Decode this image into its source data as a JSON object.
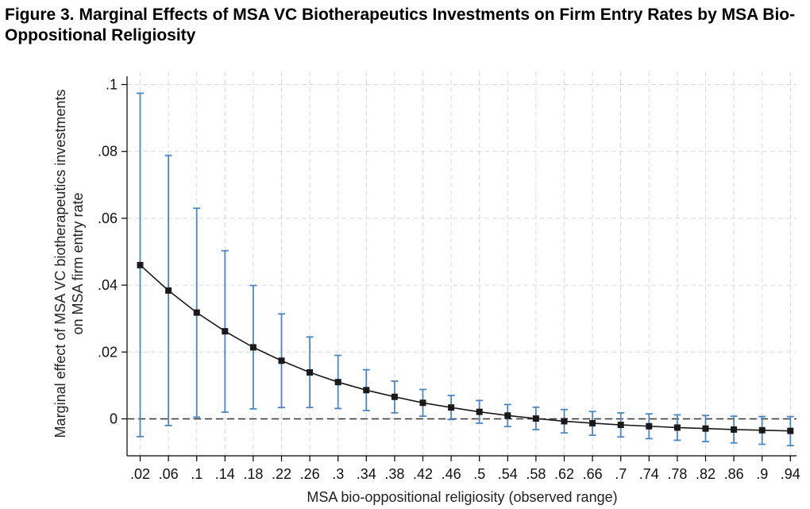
{
  "figure": {
    "number": "Figure 3.",
    "caption": "Marginal Effects of MSA VC Biotherapeutics Investments on Firm Entry Rates by MSA Bio-Oppositional Religiosity"
  },
  "chart_data": {
    "type": "line",
    "title": "Marginal Effects of MSA VC Biotherapeutics Investments on Firm Entry Rates by MSA Bio-Oppositional Religiosity",
    "xlabel": "MSA bio-oppositional religiosity (observed range)",
    "ylabel_lines": [
      "Marginal effect of MSA VC biotherapeutics investments",
      "on MSA firm entry rate"
    ],
    "x": [
      0.02,
      0.06,
      0.1,
      0.14,
      0.18,
      0.22,
      0.26,
      0.3,
      0.34,
      0.38,
      0.42,
      0.46,
      0.5,
      0.54,
      0.58,
      0.62,
      0.66,
      0.7,
      0.74,
      0.78,
      0.82,
      0.86,
      0.9,
      0.94
    ],
    "x_tick_labels": [
      ".02",
      ".06",
      ".1",
      ".14",
      ".18",
      ".22",
      ".26",
      ".3",
      ".34",
      ".38",
      ".42",
      ".46",
      ".5",
      ".54",
      ".58",
      ".62",
      ".66",
      ".7",
      ".74",
      ".78",
      ".82",
      ".86",
      ".9",
      ".94"
    ],
    "series": [
      {
        "values": [
          0.046,
          0.0384,
          0.0318,
          0.0262,
          0.0214,
          0.0174,
          0.0139,
          0.011,
          0.0086,
          0.0066,
          0.0048,
          0.0034,
          0.0021,
          0.001,
          0.0001,
          -0.0007,
          -0.0013,
          -0.0018,
          -0.0022,
          -0.0026,
          -0.0029,
          -0.0032,
          -0.0034,
          -0.0036
        ],
        "ci_lower": [
          -0.0053,
          -0.002,
          0.0005,
          0.002,
          0.003,
          0.0034,
          0.0034,
          0.0031,
          0.0025,
          0.0018,
          0.0008,
          -0.0002,
          -0.0013,
          -0.0023,
          -0.0032,
          -0.0042,
          -0.0049,
          -0.0054,
          -0.0059,
          -0.0064,
          -0.0068,
          -0.0072,
          -0.0076,
          -0.008
        ],
        "ci_upper": [
          0.0974,
          0.0788,
          0.063,
          0.0503,
          0.0399,
          0.0314,
          0.0245,
          0.019,
          0.0147,
          0.0113,
          0.0088,
          0.007,
          0.0055,
          0.0043,
          0.0035,
          0.0028,
          0.0022,
          0.0018,
          0.0015,
          0.0012,
          0.001,
          0.0008,
          0.0007,
          0.0007
        ]
      }
    ],
    "yticks": [
      0,
      0.02,
      0.04,
      0.06,
      0.08,
      0.1
    ],
    "ytick_labels": [
      "0",
      ".02",
      ".04",
      ".06",
      ".08",
      ".1"
    ],
    "ylim": [
      -0.011,
      0.1046
    ],
    "xlim": [
      -0.0,
      0.965
    ],
    "grid": true,
    "reference_line_y": 0,
    "colors": {
      "line": "#1a1a1a",
      "marker": "#1a1a1a",
      "ci": "#4a86c6",
      "grid": "#d9d9d9",
      "reference": "#333333"
    }
  }
}
